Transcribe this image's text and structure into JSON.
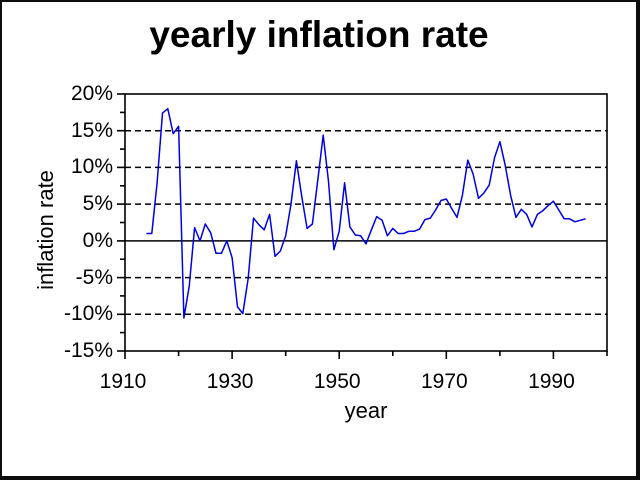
{
  "chart_data": {
    "type": "line",
    "title": "yearly inflation rate",
    "xlabel": "year",
    "ylabel": "inflation rate",
    "xlim": [
      1910,
      2000
    ],
    "ylim": [
      -15,
      20
    ],
    "x_tick_labels": [
      "1910",
      "1930",
      "1950",
      "1970",
      "1990"
    ],
    "x_major_ticks": [
      1910,
      1930,
      1950,
      1970,
      1990
    ],
    "x_minor_ticks": [
      1920,
      1940,
      1960,
      1980,
      2000
    ],
    "y_tick_labels": [
      "20%",
      "15%",
      "10%",
      "5%",
      "0%",
      "-5%",
      "-10%",
      "-15%"
    ],
    "y_ticks": [
      20,
      15,
      10,
      5,
      0,
      -5,
      -10,
      -15
    ],
    "y_minor_step": 2.5,
    "grid": {
      "orientation": "horizontal",
      "dashed_levels": [
        15,
        10,
        5,
        -5,
        -10
      ],
      "solid_levels": [
        0
      ]
    },
    "legend_position": "none",
    "line_color": "#0000dd",
    "axis_color": "#000000",
    "series": [
      {
        "name": "inflation rate",
        "years": [
          1914,
          1915,
          1916,
          1917,
          1918,
          1919,
          1920,
          1921,
          1922,
          1923,
          1924,
          1925,
          1926,
          1927,
          1928,
          1929,
          1930,
          1931,
          1932,
          1933,
          1934,
          1935,
          1936,
          1937,
          1938,
          1939,
          1940,
          1941,
          1942,
          1943,
          1944,
          1945,
          1946,
          1947,
          1948,
          1949,
          1950,
          1951,
          1952,
          1953,
          1954,
          1955,
          1956,
          1957,
          1958,
          1959,
          1960,
          1961,
          1962,
          1963,
          1964,
          1965,
          1966,
          1967,
          1968,
          1969,
          1970,
          1971,
          1972,
          1973,
          1974,
          1975,
          1976,
          1977,
          1978,
          1979,
          1980,
          1981,
          1982,
          1983,
          1984,
          1985,
          1986,
          1987,
          1988,
          1989,
          1990,
          1991,
          1992,
          1993,
          1994,
          1995,
          1996
        ],
        "values": [
          1.0,
          1.0,
          7.9,
          17.4,
          18.0,
          14.6,
          15.6,
          -10.5,
          -6.1,
          1.8,
          0.0,
          2.3,
          1.1,
          -1.7,
          -1.7,
          0.0,
          -2.3,
          -9.0,
          -9.9,
          -5.1,
          3.1,
          2.2,
          1.5,
          3.6,
          -2.1,
          -1.4,
          0.7,
          5.0,
          10.9,
          6.1,
          1.7,
          2.3,
          8.3,
          14.4,
          8.1,
          -1.2,
          1.3,
          7.9,
          1.9,
          0.8,
          0.7,
          -0.4,
          1.5,
          3.3,
          2.8,
          0.7,
          1.7,
          1.0,
          1.0,
          1.3,
          1.3,
          1.6,
          2.9,
          3.1,
          4.2,
          5.5,
          5.7,
          4.4,
          3.2,
          6.2,
          11.0,
          9.1,
          5.8,
          6.5,
          7.6,
          11.3,
          13.5,
          10.3,
          6.2,
          3.2,
          4.3,
          3.6,
          1.9,
          3.6,
          4.1,
          4.8,
          5.4,
          4.2,
          3.0,
          3.0,
          2.6,
          2.8,
          3.0
        ]
      }
    ]
  }
}
